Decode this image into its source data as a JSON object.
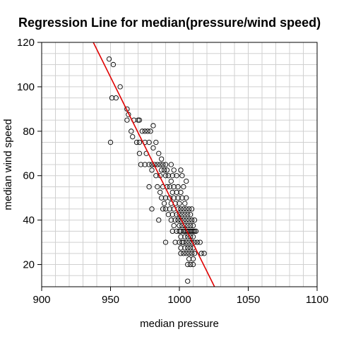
{
  "chart_data": {
    "type": "scatter",
    "title": "Regression Line for median(pressure/wind speed)",
    "xlabel": "median pressure",
    "ylabel": "median wind speed",
    "xlim": [
      900,
      1100
    ],
    "ylim": [
      10,
      120
    ],
    "xticks": [
      "900",
      "950",
      "1000",
      "1050",
      "1100"
    ],
    "yticks": [
      "20",
      "40",
      "60",
      "80",
      "100",
      "120"
    ],
    "xtick_values": [
      900,
      950,
      1000,
      1050,
      1100
    ],
    "ytick_values": [
      20,
      40,
      60,
      80,
      100,
      120
    ],
    "grid": true,
    "regression_line": {
      "color": "#e00000",
      "points": [
        [
          937.5,
          120
        ],
        [
          1025.5,
          10
        ]
      ]
    },
    "points": [
      [
        949,
        112.5
      ],
      [
        952,
        110
      ],
      [
        957,
        100
      ],
      [
        951,
        95
      ],
      [
        954,
        95
      ],
      [
        950,
        75
      ],
      [
        962,
        90
      ],
      [
        963,
        87.5
      ],
      [
        962,
        85
      ],
      [
        970,
        85
      ],
      [
        971,
        85
      ],
      [
        967,
        85
      ],
      [
        965,
        80
      ],
      [
        973,
        80
      ],
      [
        975,
        80
      ],
      [
        977,
        80
      ],
      [
        979,
        80
      ],
      [
        981,
        82.5
      ],
      [
        966,
        77.5
      ],
      [
        969,
        75
      ],
      [
        971,
        75
      ],
      [
        975,
        75
      ],
      [
        978,
        75
      ],
      [
        983,
        75
      ],
      [
        981,
        72.5
      ],
      [
        976,
        70
      ],
      [
        971,
        70
      ],
      [
        985,
        70
      ],
      [
        987,
        67.5
      ],
      [
        972,
        65
      ],
      [
        975,
        65
      ],
      [
        978,
        65
      ],
      [
        980,
        65
      ],
      [
        982,
        65
      ],
      [
        984,
        65
      ],
      [
        986,
        65
      ],
      [
        988,
        65
      ],
      [
        990,
        65
      ],
      [
        994,
        65
      ],
      [
        980,
        62.5
      ],
      [
        987,
        62.5
      ],
      [
        989,
        62.5
      ],
      [
        991,
        62.5
      ],
      [
        996,
        62.5
      ],
      [
        1001,
        62.5
      ],
      [
        983,
        60
      ],
      [
        986,
        60
      ],
      [
        990,
        60
      ],
      [
        992,
        60
      ],
      [
        995,
        60
      ],
      [
        998,
        60
      ],
      [
        1002,
        60
      ],
      [
        994,
        57.5
      ],
      [
        1005,
        57.5
      ],
      [
        978,
        55
      ],
      [
        984,
        55
      ],
      [
        988,
        55
      ],
      [
        991,
        55
      ],
      [
        993,
        55
      ],
      [
        996,
        55
      ],
      [
        999,
        55
      ],
      [
        1003,
        55
      ],
      [
        986,
        52.5
      ],
      [
        995,
        52.5
      ],
      [
        998,
        52.5
      ],
      [
        1001,
        52.5
      ],
      [
        987,
        50
      ],
      [
        990,
        50
      ],
      [
        993,
        50
      ],
      [
        996,
        50
      ],
      [
        999,
        50
      ],
      [
        1002,
        50
      ],
      [
        1005,
        50
      ],
      [
        989,
        47.5
      ],
      [
        994,
        47.5
      ],
      [
        997,
        47.5
      ],
      [
        1000,
        47.5
      ],
      [
        1004,
        47.5
      ],
      [
        980,
        45
      ],
      [
        988,
        45
      ],
      [
        990,
        45
      ],
      [
        993,
        45
      ],
      [
        996,
        45
      ],
      [
        999,
        45
      ],
      [
        1001,
        45
      ],
      [
        1003,
        45
      ],
      [
        1005,
        45
      ],
      [
        1007,
        45
      ],
      [
        1009,
        45
      ],
      [
        992,
        42.5
      ],
      [
        995,
        42.5
      ],
      [
        998,
        42.5
      ],
      [
        1000,
        42.5
      ],
      [
        1002,
        42.5
      ],
      [
        1004,
        42.5
      ],
      [
        1006,
        42.5
      ],
      [
        1008,
        42.5
      ],
      [
        985,
        40
      ],
      [
        994,
        40
      ],
      [
        997,
        40
      ],
      [
        999,
        40
      ],
      [
        1001,
        40
      ],
      [
        1003,
        40
      ],
      [
        1005,
        40
      ],
      [
        1007,
        40
      ],
      [
        1009,
        40
      ],
      [
        1011,
        40
      ],
      [
        996,
        37.5
      ],
      [
        1000,
        37.5
      ],
      [
        1002,
        37.5
      ],
      [
        1004,
        37.5
      ],
      [
        1006,
        37.5
      ],
      [
        1008,
        37.5
      ],
      [
        1010,
        37.5
      ],
      [
        995,
        35
      ],
      [
        998,
        35
      ],
      [
        1000,
        35
      ],
      [
        1001,
        35
      ],
      [
        1003,
        35
      ],
      [
        1004,
        35
      ],
      [
        1005,
        35
      ],
      [
        1006,
        35
      ],
      [
        1007,
        35
      ],
      [
        1008,
        35
      ],
      [
        1009,
        35
      ],
      [
        1010,
        35
      ],
      [
        1011,
        35
      ],
      [
        1012,
        35
      ],
      [
        1001,
        32.5
      ],
      [
        1004,
        32.5
      ],
      [
        1006,
        32.5
      ],
      [
        1008,
        32.5
      ],
      [
        1010,
        32.5
      ],
      [
        990,
        30
      ],
      [
        997,
        30
      ],
      [
        1000,
        30
      ],
      [
        1002,
        30
      ],
      [
        1003,
        30
      ],
      [
        1005,
        30
      ],
      [
        1007,
        30
      ],
      [
        1009,
        30
      ],
      [
        1011,
        30
      ],
      [
        1013,
        30
      ],
      [
        1015,
        30
      ],
      [
        1001,
        27.5
      ],
      [
        1004,
        27.5
      ],
      [
        1006,
        27.5
      ],
      [
        1008,
        27.5
      ],
      [
        1010,
        27.5
      ],
      [
        1001,
        25
      ],
      [
        1003,
        25
      ],
      [
        1005,
        25
      ],
      [
        1007,
        25
      ],
      [
        1009,
        25
      ],
      [
        1011,
        25
      ],
      [
        1016,
        25
      ],
      [
        1018,
        25
      ],
      [
        1007,
        22.5
      ],
      [
        1010,
        22.5
      ],
      [
        1006,
        20
      ],
      [
        1008,
        20
      ],
      [
        1010,
        20
      ],
      [
        1006,
        12.5
      ]
    ]
  }
}
